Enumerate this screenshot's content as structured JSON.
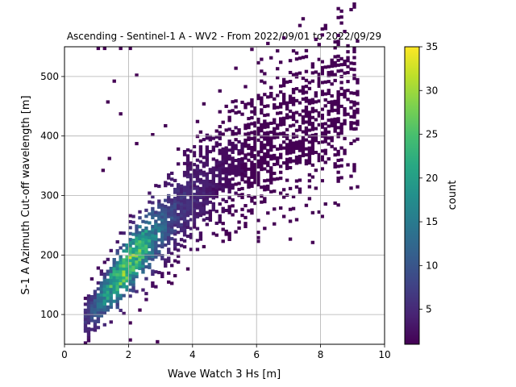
{
  "chart_data": {
    "type": "heatmap",
    "title": "Ascending - Sentinel-1 A - WV2 - From 2022/09/01 to 2022/09/29",
    "xlabel": "Wave Watch 3 Hs [m]",
    "ylabel": "S-1 A Azimuth Cut-off wavelength [m]",
    "xlim": [
      0,
      10
    ],
    "ylim": [
      50,
      550
    ],
    "xticks": [
      0,
      2,
      4,
      6,
      8,
      10
    ],
    "yticks": [
      100,
      200,
      300,
      400,
      500
    ],
    "grid": true,
    "bin_size": {
      "x": 0.1,
      "y": 5
    },
    "density_model": {
      "ridge_x": [
        1.0,
        2.0,
        3.0,
        4.0,
        5.0,
        6.0,
        7.0,
        8.0,
        9.0
      ],
      "ridge_y": [
        115,
        185,
        245,
        295,
        340,
        375,
        405,
        440,
        470
      ],
      "peak_x": 1.9,
      "peak_y": 195,
      "x_range": [
        0.6,
        9.1
      ],
      "outliers": [
        [
          1.0,
          545
        ],
        [
          1.2,
          545
        ],
        [
          1.7,
          545
        ],
        [
          2.0,
          545
        ],
        [
          1.5,
          490
        ],
        [
          2.2,
          500
        ],
        [
          1.3,
          455
        ],
        [
          1.7,
          435
        ],
        [
          1.35,
          360
        ],
        [
          1.15,
          340
        ],
        [
          2.2,
          385
        ],
        [
          2.7,
          400
        ],
        [
          3.1,
          415
        ],
        [
          2.0,
          55
        ],
        [
          2.85,
          52
        ],
        [
          6.1,
          490
        ],
        [
          7.7,
          490
        ],
        [
          7.9,
          485
        ],
        [
          8.5,
          525
        ],
        [
          8.7,
          518
        ],
        [
          8.3,
          505
        ],
        [
          9.05,
          410
        ],
        [
          8.1,
          410
        ],
        [
          8.4,
          285
        ],
        [
          7.9,
          270
        ],
        [
          7.8,
          310
        ],
        [
          6.0,
          227
        ],
        [
          6.8,
          295
        ]
      ]
    },
    "colorbar": {
      "label": "count",
      "min": 1,
      "max": 35,
      "ticks": [
        5,
        10,
        15,
        20,
        25,
        30,
        35
      ],
      "colormap": "viridis"
    }
  }
}
